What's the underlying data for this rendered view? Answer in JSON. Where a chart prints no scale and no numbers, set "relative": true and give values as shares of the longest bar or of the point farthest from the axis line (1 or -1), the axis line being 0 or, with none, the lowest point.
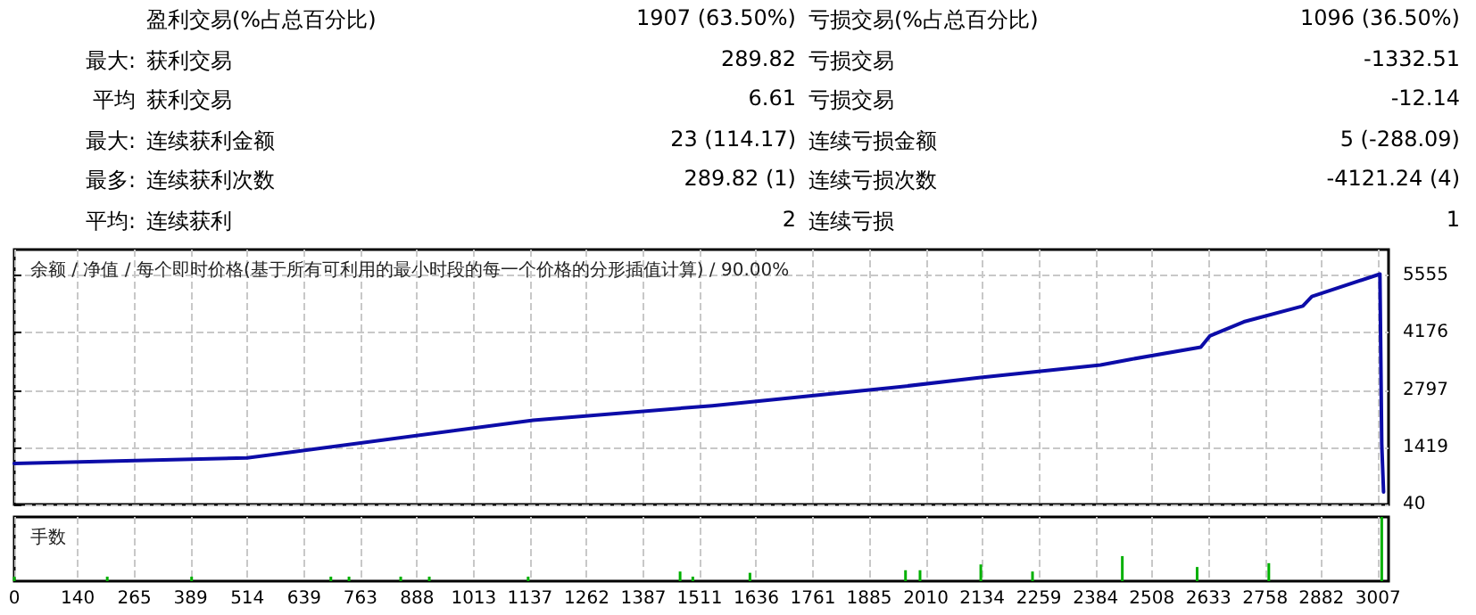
{
  "chart_data": [
    {
      "type": "other",
      "annotations": [
        "盈利交易(%占总百分比)",
        "1907 (63.50%)",
        "亏损交易(%占总百分比)",
        "1096 (36.50%)",
        "最大:",
        "获利交易",
        "289.82",
        "亏损交易",
        "-1332.51",
        "平均",
        "获利交易",
        "6.61",
        "亏损交易",
        "-12.14",
        "最大:",
        "连续获利金额",
        "23 (114.17)",
        "连续亏损金额",
        "5 (-288.09)",
        "最多:",
        "连续获利次数",
        "289.82 (1)",
        "连续亏损次数",
        "-4121.24 (4)",
        "平均:",
        "连续获利",
        "2",
        "连续亏损",
        "1"
      ]
    },
    {
      "type": "line",
      "title": "余额 / 净值 / 每个即时价格(基于所有可利用的最小时段的每一个价格的分形插值计算) / 90.00%",
      "x": [
        0,
        513,
        1144,
        1539,
        1934,
        2131,
        2395,
        2458,
        2616,
        2636,
        2711,
        2841,
        2861,
        3011,
        3015,
        3019
      ],
      "series": [
        {
          "color": "#0c0ca8",
          "values": [
            1030,
            1160,
            2070,
            2420,
            2850,
            3100,
            3400,
            3530,
            3830,
            4100,
            4440,
            4820,
            5050,
            5590,
            1500,
            340
          ]
        }
      ],
      "xlim": [
        0,
        3030
      ],
      "xticks": [
        0,
        140,
        265,
        389,
        514,
        639,
        763,
        888,
        1013,
        1137,
        1262,
        1387,
        1511,
        1636,
        1761,
        1885,
        2010,
        2134,
        2259,
        2384,
        2508,
        2633,
        2758,
        2882,
        3007
      ],
      "ylim": [
        40,
        6180
      ],
      "yticks": [
        40,
        1419,
        2797,
        4176,
        5555
      ],
      "grid": true,
      "tick_labels": "y",
      "line_style": "solid",
      "marker": "none"
    },
    {
      "type": "bar",
      "title": "手数",
      "relative": true,
      "x": [
        0,
        205,
        391,
        698,
        738,
        852,
        915,
        1133,
        1468,
        1496,
        1622,
        1965,
        1997,
        2131,
        2245,
        2443,
        2608,
        2766,
        3015
      ],
      "series": [
        {
          "color": "#00b000",
          "values": [
            0.07,
            0.07,
            0.07,
            0.07,
            0.07,
            0.07,
            0.07,
            0.07,
            0.15,
            0.07,
            0.13,
            0.17,
            0.17,
            0.26,
            0.15,
            0.39,
            0.22,
            0.28,
            1
          ]
        }
      ],
      "xlim": [
        0,
        3030
      ],
      "xticks": [
        0,
        140,
        265,
        389,
        514,
        639,
        763,
        888,
        1013,
        1137,
        1262,
        1387,
        1511,
        1636,
        1761,
        1885,
        2010,
        2134,
        2259,
        2384,
        2508,
        2633,
        2758,
        2882,
        3007
      ],
      "grid": "x",
      "tick_labels": "x"
    }
  ]
}
